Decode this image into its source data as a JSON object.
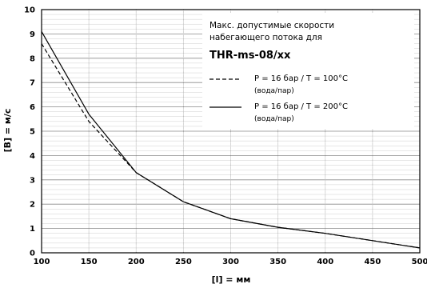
{
  "chart_data": {
    "type": "line",
    "xlabel": "[l] = мм",
    "ylabel": "[В] = м/с",
    "xlim": [
      100,
      500
    ],
    "ylim": [
      0,
      10
    ],
    "xticks": [
      "100",
      "150",
      "200",
      "250",
      "300",
      "350",
      "400",
      "450",
      "500"
    ],
    "yticks": [
      "0",
      "1",
      "2",
      "3",
      "4",
      "5",
      "6",
      "7",
      "8",
      "9",
      "10"
    ],
    "grid": true,
    "legend": {
      "placement": "top-right",
      "title_lines": [
        "Макс. допустимые скорости",
        "набегающего потока для"
      ],
      "model": "THR-ms-08/xx"
    },
    "series": [
      {
        "name": "P = 16 бар / T = 100°C",
        "name_sub": "(вода/пар)",
        "style": "dashed",
        "color": "#000000",
        "x": [
          100,
          150,
          200,
          250,
          300,
          350,
          400,
          500
        ],
        "y": [
          8.6,
          5.4,
          3.3,
          2.1,
          1.4,
          1.05,
          0.8,
          0.2
        ]
      },
      {
        "name": "P = 16 бар / T = 200°C",
        "name_sub": "(вода/пар)",
        "style": "solid",
        "color": "#000000",
        "x": [
          100,
          150,
          200,
          250,
          300,
          350,
          400,
          500
        ],
        "y": [
          9.1,
          5.7,
          3.3,
          2.1,
          1.4,
          1.05,
          0.8,
          0.2
        ]
      }
    ]
  }
}
